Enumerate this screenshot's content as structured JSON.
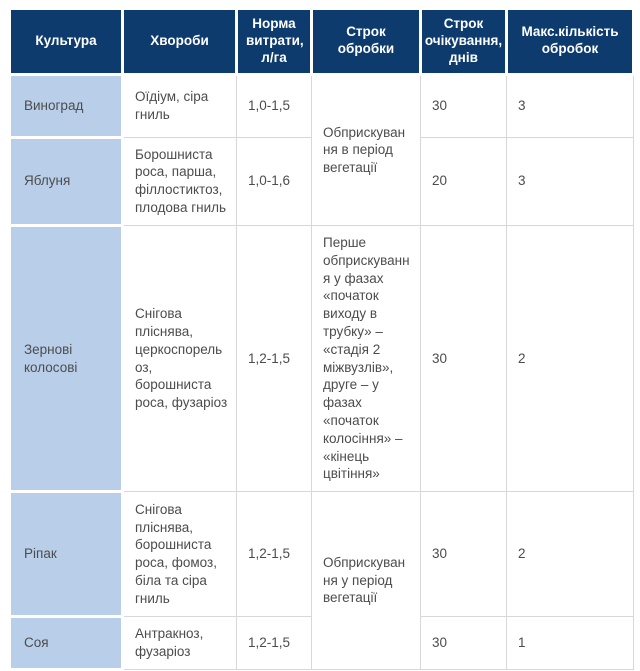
{
  "table": {
    "title": "Crop disease treatment table",
    "colors": {
      "header_bg": "#0d3b6e",
      "header_text": "#ffffff",
      "crop_column_bg": "#b9cfe9",
      "body_text": "#4c4c4e",
      "cell_border": "#d8d8d8"
    },
    "headers": {
      "culture": "Культура",
      "diseases": "Хвороби",
      "rate": "Норма витрати, л/га",
      "treatment_period": "Строк обробки",
      "waiting_days": "Строк очікування, днів",
      "max_treatments": "Макс.кількість обробок"
    },
    "rows": [
      {
        "crop": "Виноград",
        "diseases": "Оїдіум, сіра гниль",
        "rate": "1,0-1,5",
        "period": "Обприскування в період вегетації",
        "waiting_days": "30",
        "max_treatments": "3"
      },
      {
        "crop": "Яблуня",
        "diseases": "Борошниста роса, парша, філлостиктоз, плодова гниль",
        "rate": "1,0-1,6",
        "waiting_days": "20",
        "max_treatments": "3"
      },
      {
        "crop": "Зернові колосові",
        "diseases": "Снігова пліснява, церкоспорельоз, борошниста роса, фузаріоз",
        "rate": "1,2-1,5",
        "period": "Перше обприскування у фазах «початок виходу в трубку» – «стадія 2 міжвузлів», друге – у фазах «початок колосіння» – «кінець цвітіння»",
        "waiting_days": "30",
        "max_treatments": "2"
      },
      {
        "crop": "Ріпак",
        "diseases": "Снігова пліснява, борошниста роса, фомоз, біла та сіра гниль",
        "rate": "1,2-1,5",
        "period": "Обприскування у період вегетації",
        "waiting_days": "30",
        "max_treatments": "2"
      },
      {
        "crop": "Соя",
        "diseases": "Антракноз, фузаріоз",
        "rate": "1,2-1,5",
        "waiting_days": "30",
        "max_treatments": "1"
      }
    ]
  }
}
